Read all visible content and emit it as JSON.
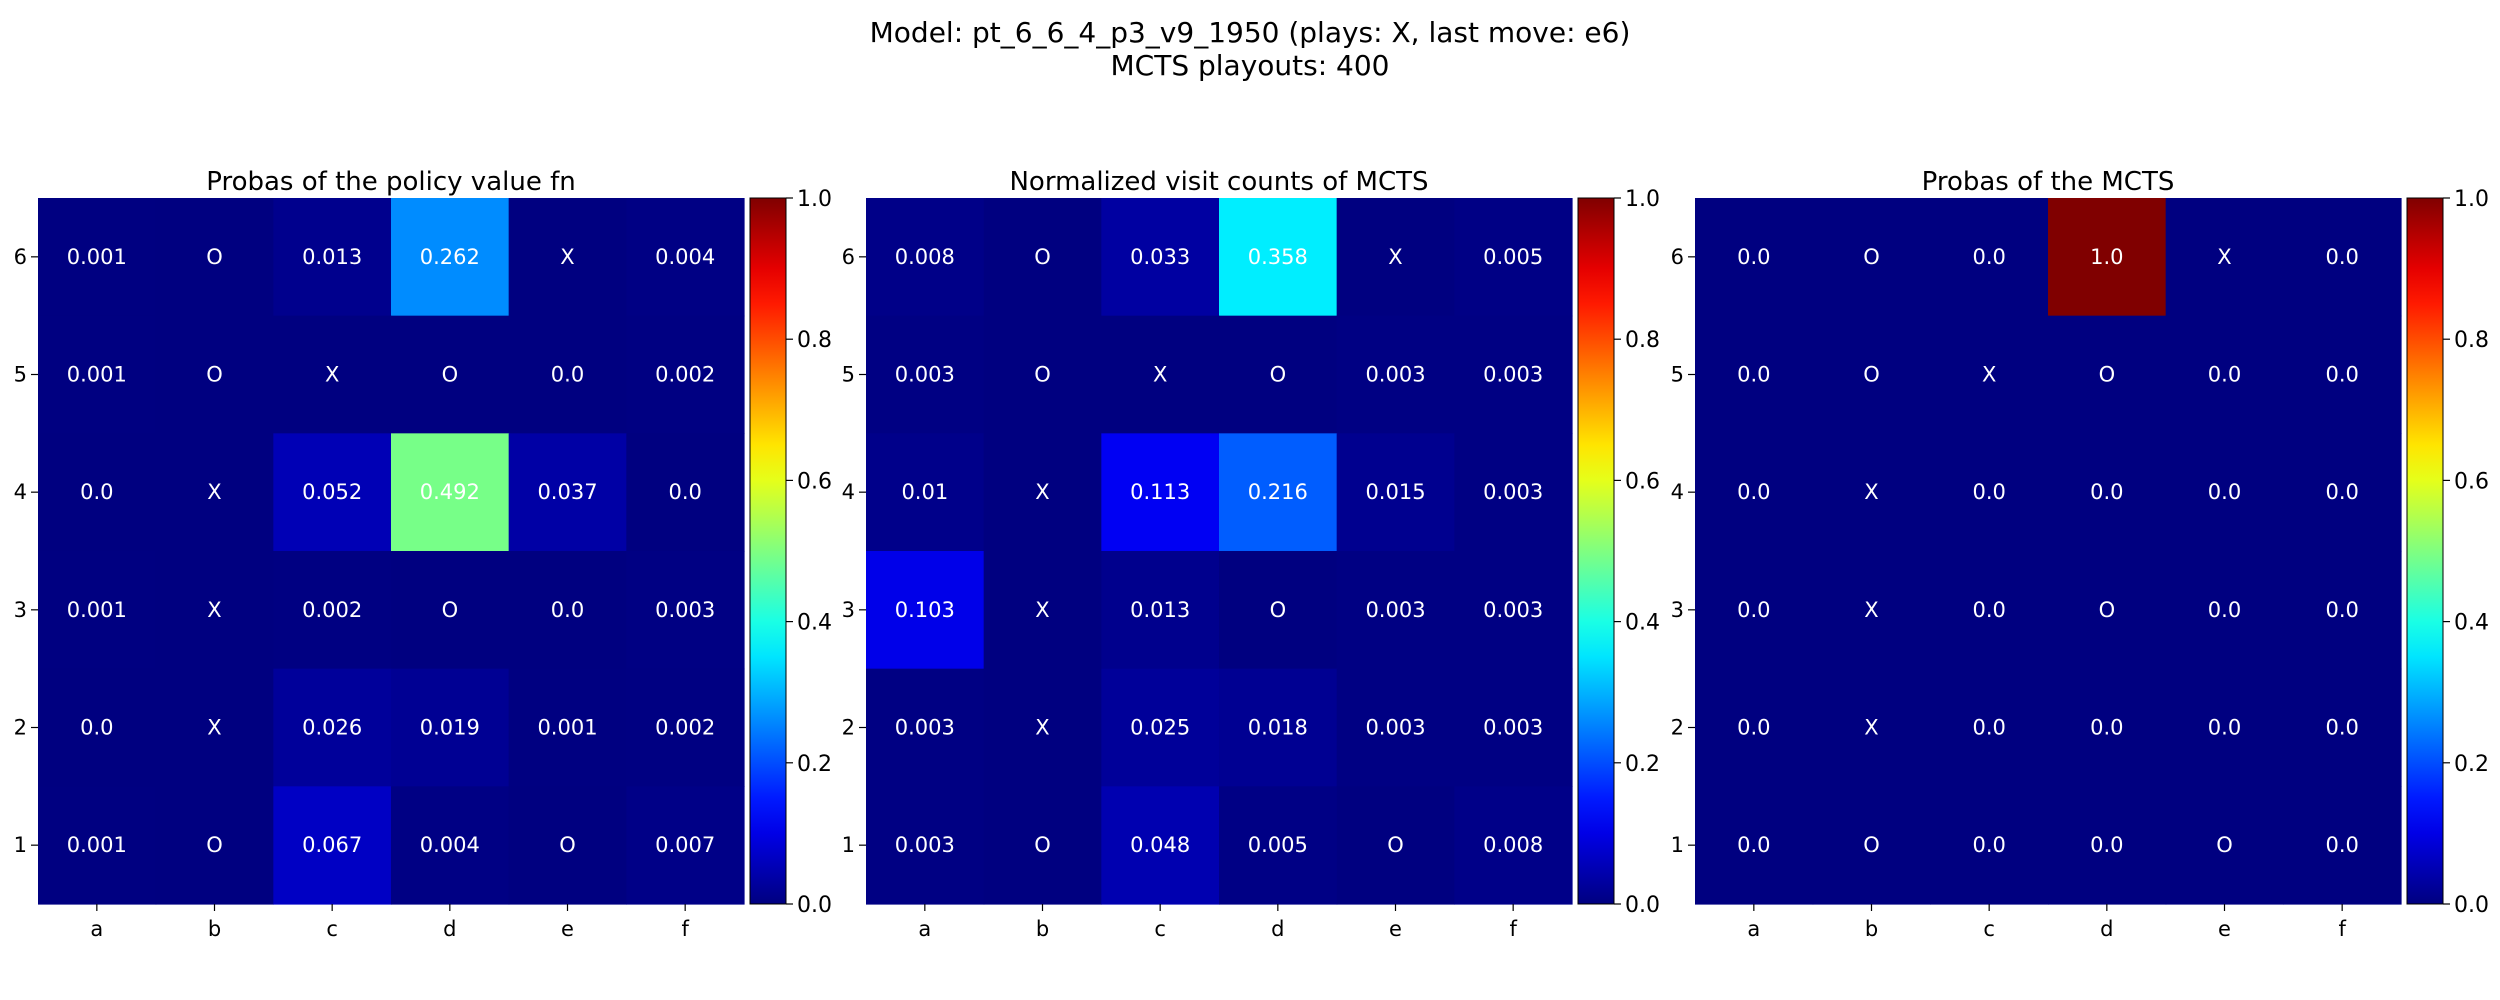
{
  "title": {
    "line1": "Model: pt_6_6_4_p3_v9_1950 (plays: X, last move: e6)",
    "line2": "MCTS playouts: 400"
  },
  "chart_data": [
    {
      "type": "heatmap",
      "title": "Probas of the policy value fn",
      "x_categories": [
        "a",
        "b",
        "c",
        "d",
        "e",
        "f"
      ],
      "y_categories": [
        "6",
        "5",
        "4",
        "3",
        "2",
        "1"
      ],
      "colormap": "jet",
      "colorbar": {
        "range": [
          0.0,
          1.0
        ],
        "ticks": [
          "0.0",
          "0.2",
          "0.4",
          "0.6",
          "0.8",
          "1.0"
        ]
      },
      "cells": [
        [
          "0.001",
          "O",
          "0.013",
          "0.262",
          "X",
          "0.004"
        ],
        [
          "0.001",
          "O",
          "X",
          "O",
          "0.0",
          "0.002"
        ],
        [
          "0.0",
          "X",
          "0.052",
          "0.492",
          "0.037",
          "0.0"
        ],
        [
          "0.001",
          "X",
          "0.002",
          "O",
          "0.0",
          "0.003"
        ],
        [
          "0.0",
          "X",
          "0.026",
          "0.019",
          "0.001",
          "0.002"
        ],
        [
          "0.001",
          "O",
          "0.067",
          "0.004",
          "O",
          "0.007"
        ]
      ]
    },
    {
      "type": "heatmap",
      "title": "Normalized visit counts of MCTS",
      "x_categories": [
        "a",
        "b",
        "c",
        "d",
        "e",
        "f"
      ],
      "y_categories": [
        "6",
        "5",
        "4",
        "3",
        "2",
        "1"
      ],
      "colormap": "jet",
      "colorbar": {
        "range": [
          0.0,
          1.0
        ],
        "ticks": [
          "0.0",
          "0.2",
          "0.4",
          "0.6",
          "0.8",
          "1.0"
        ]
      },
      "cells": [
        [
          "0.008",
          "O",
          "0.033",
          "0.358",
          "X",
          "0.005"
        ],
        [
          "0.003",
          "O",
          "X",
          "O",
          "0.003",
          "0.003"
        ],
        [
          "0.01",
          "X",
          "0.113",
          "0.216",
          "0.015",
          "0.003"
        ],
        [
          "0.103",
          "X",
          "0.013",
          "O",
          "0.003",
          "0.003"
        ],
        [
          "0.003",
          "X",
          "0.025",
          "0.018",
          "0.003",
          "0.003"
        ],
        [
          "0.003",
          "O",
          "0.048",
          "0.005",
          "O",
          "0.008"
        ]
      ]
    },
    {
      "type": "heatmap",
      "title": "Probas of the MCTS",
      "x_categories": [
        "a",
        "b",
        "c",
        "d",
        "e",
        "f"
      ],
      "y_categories": [
        "6",
        "5",
        "4",
        "3",
        "2",
        "1"
      ],
      "colormap": "jet",
      "colorbar": {
        "range": [
          0.0,
          1.0
        ],
        "ticks": [
          "0.0",
          "0.2",
          "0.4",
          "0.6",
          "0.8",
          "1.0"
        ]
      },
      "cells": [
        [
          "0.0",
          "O",
          "0.0",
          "1.0",
          "X",
          "0.0"
        ],
        [
          "0.0",
          "O",
          "X",
          "O",
          "0.0",
          "0.0"
        ],
        [
          "0.0",
          "X",
          "0.0",
          "0.0",
          "0.0",
          "0.0"
        ],
        [
          "0.0",
          "X",
          "0.0",
          "O",
          "0.0",
          "0.0"
        ],
        [
          "0.0",
          "X",
          "0.0",
          "0.0",
          "0.0",
          "0.0"
        ],
        [
          "0.0",
          "O",
          "0.0",
          "0.0",
          "O",
          "0.0"
        ]
      ]
    }
  ]
}
